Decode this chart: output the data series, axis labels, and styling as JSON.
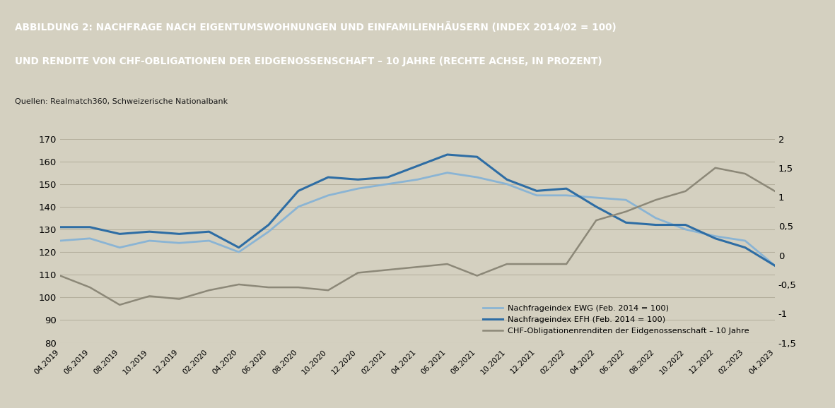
{
  "title_line1": "ABBILDUNG 2: NACHFRAGE NACH EIGENTUMSWOHNUNGEN UND EINFAMILIENHÄUSERN (INDEX 2014/02 = 100)",
  "title_line2": "UND RENDITE VON CHF-OBLIGATIONEN DER EIDGENOSSENSCHAFT – 10 JAHRE (RECHTE ACHSE, IN PROZENT)",
  "source": "Quellen: Realmatch360, Schweizerische Nationalbank",
  "title_bg": "#9b9070",
  "plot_bg": "#d4d0c0",
  "fig_bg": "#d4d0c0",
  "x_labels": [
    "04.2019",
    "06.2019",
    "08.2019",
    "10.2019",
    "12.2019",
    "02.2020",
    "04.2020",
    "06.2020",
    "08.2020",
    "10.2020",
    "12.2020",
    "02.2021",
    "04.2021",
    "06.2021",
    "08.2021",
    "10.2021",
    "12.2021",
    "02.2022",
    "04.2022",
    "06.2022",
    "08.2022",
    "10.2022",
    "12.2022",
    "02.2023",
    "04.2023"
  ],
  "ewg": [
    125,
    126,
    122,
    125,
    124,
    125,
    120,
    129,
    140,
    145,
    148,
    150,
    152,
    155,
    153,
    150,
    145,
    145,
    144,
    143,
    135,
    130,
    127,
    125,
    114
  ],
  "efh": [
    131,
    131,
    128,
    129,
    128,
    129,
    122,
    132,
    147,
    153,
    152,
    153,
    158,
    163,
    162,
    152,
    147,
    148,
    140,
    133,
    132,
    132,
    126,
    122,
    114
  ],
  "bond_right": [
    -0.35,
    -0.55,
    -0.85,
    -0.7,
    -0.75,
    -0.6,
    -0.5,
    -0.55,
    -0.55,
    -0.6,
    -0.3,
    -0.25,
    -0.2,
    -0.15,
    -0.35,
    -0.15,
    -0.15,
    -0.15,
    0.6,
    0.75,
    0.95,
    1.1,
    1.5,
    1.4,
    1.1
  ],
  "ewg_color": "#8ab4d4",
  "efh_color": "#2e6da4",
  "bond_color": "#8c8878",
  "ylim_left": [
    80,
    170
  ],
  "ylim_right": [
    -1.5,
    2.0
  ],
  "yticks_left": [
    80,
    90,
    100,
    110,
    120,
    130,
    140,
    150,
    160,
    170
  ],
  "yticks_right": [
    -1.5,
    -1.0,
    -0.5,
    0,
    0.5,
    1.0,
    1.5,
    2.0
  ],
  "legend_ewg": "Nachfrageindex EWG (Feb. 2014 = 100)",
  "legend_efh": "Nachfrageindex EFH (Feb. 2014 = 100)",
  "legend_bond": "CHF-Obligationenrenditen der Eidgenossenschaft – 10 Jahre"
}
